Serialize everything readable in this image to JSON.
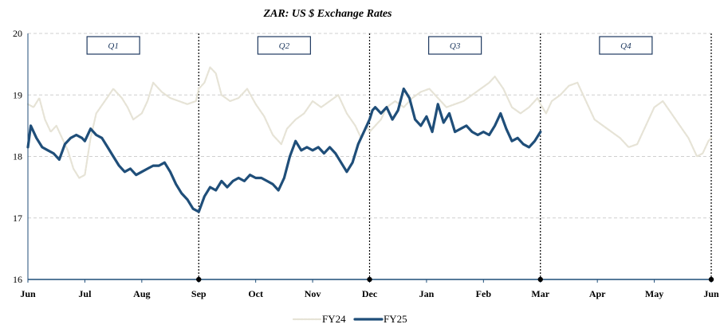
{
  "chart_data": {
    "type": "line",
    "title": "ZAR: US $ Exchange Rates",
    "xlabel": "",
    "ylabel": "",
    "ylim": [
      16,
      20
    ],
    "yticks": [
      16,
      17,
      18,
      19,
      20
    ],
    "xlim": [
      0,
      12
    ],
    "xticks": [
      "Jun",
      "Jul",
      "Aug",
      "Sep",
      "Oct",
      "Nov",
      "Dec",
      "Jan",
      "Feb",
      "Mar",
      "Apr",
      "May",
      "Jun"
    ],
    "quarters": [
      {
        "label": "Q1",
        "start": 0,
        "end": 3
      },
      {
        "label": "Q2",
        "start": 3,
        "end": 6
      },
      {
        "label": "Q3",
        "start": 6,
        "end": 9
      },
      {
        "label": "Q4",
        "start": 9,
        "end": 12
      }
    ],
    "quarter_boundaries": [
      3,
      6,
      9,
      12
    ],
    "series": [
      {
        "name": "FY24",
        "color": "#e6e3d6",
        "points": [
          [
            0.0,
            18.85
          ],
          [
            0.1,
            18.8
          ],
          [
            0.2,
            18.95
          ],
          [
            0.3,
            18.6
          ],
          [
            0.4,
            18.4
          ],
          [
            0.5,
            18.5
          ],
          [
            0.6,
            18.3
          ],
          [
            0.7,
            18.1
          ],
          [
            0.8,
            17.8
          ],
          [
            0.9,
            17.65
          ],
          [
            1.0,
            17.7
          ],
          [
            1.1,
            18.3
          ],
          [
            1.2,
            18.7
          ],
          [
            1.35,
            18.9
          ],
          [
            1.5,
            19.1
          ],
          [
            1.65,
            18.95
          ],
          [
            1.75,
            18.8
          ],
          [
            1.85,
            18.6
          ],
          [
            2.0,
            18.7
          ],
          [
            2.1,
            18.9
          ],
          [
            2.2,
            19.2
          ],
          [
            2.35,
            19.05
          ],
          [
            2.5,
            18.95
          ],
          [
            2.65,
            18.9
          ],
          [
            2.8,
            18.85
          ],
          [
            2.95,
            18.9
          ],
          [
            3.0,
            19.1
          ],
          [
            3.1,
            19.2
          ],
          [
            3.2,
            19.45
          ],
          [
            3.3,
            19.35
          ],
          [
            3.4,
            19.0
          ],
          [
            3.55,
            18.9
          ],
          [
            3.7,
            18.95
          ],
          [
            3.85,
            19.1
          ],
          [
            4.0,
            18.85
          ],
          [
            4.15,
            18.65
          ],
          [
            4.3,
            18.35
          ],
          [
            4.45,
            18.2
          ],
          [
            4.55,
            18.45
          ],
          [
            4.7,
            18.6
          ],
          [
            4.85,
            18.7
          ],
          [
            5.0,
            18.9
          ],
          [
            5.15,
            18.8
          ],
          [
            5.3,
            18.9
          ],
          [
            5.45,
            19.0
          ],
          [
            5.6,
            18.7
          ],
          [
            5.75,
            18.5
          ],
          [
            5.85,
            18.3
          ],
          [
            5.95,
            18.5
          ],
          [
            6.0,
            18.4
          ],
          [
            6.1,
            18.5
          ],
          [
            6.2,
            18.6
          ],
          [
            6.3,
            18.8
          ],
          [
            6.45,
            18.9
          ],
          [
            6.6,
            18.8
          ],
          [
            6.75,
            18.95
          ],
          [
            6.9,
            19.05
          ],
          [
            7.05,
            19.1
          ],
          [
            7.2,
            18.95
          ],
          [
            7.35,
            18.8
          ],
          [
            7.5,
            18.85
          ],
          [
            7.65,
            18.9
          ],
          [
            7.8,
            19.0
          ],
          [
            7.95,
            19.1
          ],
          [
            8.1,
            19.2
          ],
          [
            8.2,
            19.3
          ],
          [
            8.35,
            19.1
          ],
          [
            8.5,
            18.8
          ],
          [
            8.65,
            18.7
          ],
          [
            8.8,
            18.8
          ],
          [
            8.95,
            18.95
          ],
          [
            9.0,
            18.85
          ],
          [
            9.1,
            18.7
          ],
          [
            9.2,
            18.9
          ],
          [
            9.35,
            19.0
          ],
          [
            9.5,
            19.15
          ],
          [
            9.65,
            19.2
          ],
          [
            9.8,
            18.9
          ],
          [
            9.95,
            18.6
          ],
          [
            10.1,
            18.5
          ],
          [
            10.25,
            18.4
          ],
          [
            10.4,
            18.3
          ],
          [
            10.55,
            18.15
          ],
          [
            10.7,
            18.2
          ],
          [
            10.85,
            18.5
          ],
          [
            11.0,
            18.8
          ],
          [
            11.15,
            18.9
          ],
          [
            11.3,
            18.7
          ],
          [
            11.45,
            18.5
          ],
          [
            11.6,
            18.3
          ],
          [
            11.75,
            18.0
          ],
          [
            11.85,
            18.05
          ],
          [
            11.95,
            18.25
          ],
          [
            12.0,
            18.3
          ]
        ]
      },
      {
        "name": "FY25",
        "color": "#1f4e79",
        "points": [
          [
            0.0,
            18.15
          ],
          [
            0.05,
            18.5
          ],
          [
            0.15,
            18.3
          ],
          [
            0.25,
            18.15
          ],
          [
            0.35,
            18.1
          ],
          [
            0.45,
            18.05
          ],
          [
            0.55,
            17.95
          ],
          [
            0.65,
            18.2
          ],
          [
            0.75,
            18.3
          ],
          [
            0.85,
            18.35
          ],
          [
            0.95,
            18.3
          ],
          [
            1.0,
            18.25
          ],
          [
            1.1,
            18.45
          ],
          [
            1.2,
            18.35
          ],
          [
            1.3,
            18.3
          ],
          [
            1.4,
            18.15
          ],
          [
            1.5,
            18.0
          ],
          [
            1.6,
            17.85
          ],
          [
            1.7,
            17.75
          ],
          [
            1.8,
            17.8
          ],
          [
            1.9,
            17.7
          ],
          [
            2.0,
            17.75
          ],
          [
            2.1,
            17.8
          ],
          [
            2.2,
            17.85
          ],
          [
            2.3,
            17.85
          ],
          [
            2.4,
            17.9
          ],
          [
            2.5,
            17.75
          ],
          [
            2.6,
            17.55
          ],
          [
            2.7,
            17.4
          ],
          [
            2.8,
            17.3
          ],
          [
            2.9,
            17.15
          ],
          [
            3.0,
            17.1
          ],
          [
            3.1,
            17.35
          ],
          [
            3.2,
            17.5
          ],
          [
            3.3,
            17.45
          ],
          [
            3.4,
            17.6
          ],
          [
            3.5,
            17.5
          ],
          [
            3.6,
            17.6
          ],
          [
            3.7,
            17.65
          ],
          [
            3.8,
            17.6
          ],
          [
            3.9,
            17.7
          ],
          [
            4.0,
            17.65
          ],
          [
            4.1,
            17.65
          ],
          [
            4.2,
            17.6
          ],
          [
            4.3,
            17.55
          ],
          [
            4.4,
            17.45
          ],
          [
            4.5,
            17.65
          ],
          [
            4.6,
            18.0
          ],
          [
            4.7,
            18.25
          ],
          [
            4.8,
            18.1
          ],
          [
            4.9,
            18.15
          ],
          [
            5.0,
            18.1
          ],
          [
            5.1,
            18.15
          ],
          [
            5.2,
            18.05
          ],
          [
            5.3,
            18.15
          ],
          [
            5.4,
            18.05
          ],
          [
            5.5,
            17.9
          ],
          [
            5.6,
            17.75
          ],
          [
            5.7,
            17.9
          ],
          [
            5.8,
            18.2
          ],
          [
            5.9,
            18.4
          ],
          [
            6.0,
            18.6
          ],
          [
            6.05,
            18.75
          ],
          [
            6.1,
            18.8
          ],
          [
            6.2,
            18.7
          ],
          [
            6.3,
            18.8
          ],
          [
            6.4,
            18.6
          ],
          [
            6.5,
            18.75
          ],
          [
            6.6,
            19.1
          ],
          [
            6.7,
            18.95
          ],
          [
            6.8,
            18.6
          ],
          [
            6.9,
            18.5
          ],
          [
            7.0,
            18.65
          ],
          [
            7.1,
            18.4
          ],
          [
            7.2,
            18.85
          ],
          [
            7.3,
            18.55
          ],
          [
            7.4,
            18.7
          ],
          [
            7.5,
            18.4
          ],
          [
            7.6,
            18.45
          ],
          [
            7.7,
            18.5
          ],
          [
            7.8,
            18.4
          ],
          [
            7.9,
            18.35
          ],
          [
            8.0,
            18.4
          ],
          [
            8.1,
            18.35
          ],
          [
            8.2,
            18.5
          ],
          [
            8.3,
            18.7
          ],
          [
            8.4,
            18.45
          ],
          [
            8.5,
            18.25
          ],
          [
            8.6,
            18.3
          ],
          [
            8.7,
            18.2
          ],
          [
            8.8,
            18.15
          ],
          [
            8.9,
            18.25
          ],
          [
            9.0,
            18.4
          ]
        ]
      }
    ],
    "legend": [
      "FY24",
      "FY25"
    ],
    "legend_position": "bottom-center",
    "grid": true
  }
}
